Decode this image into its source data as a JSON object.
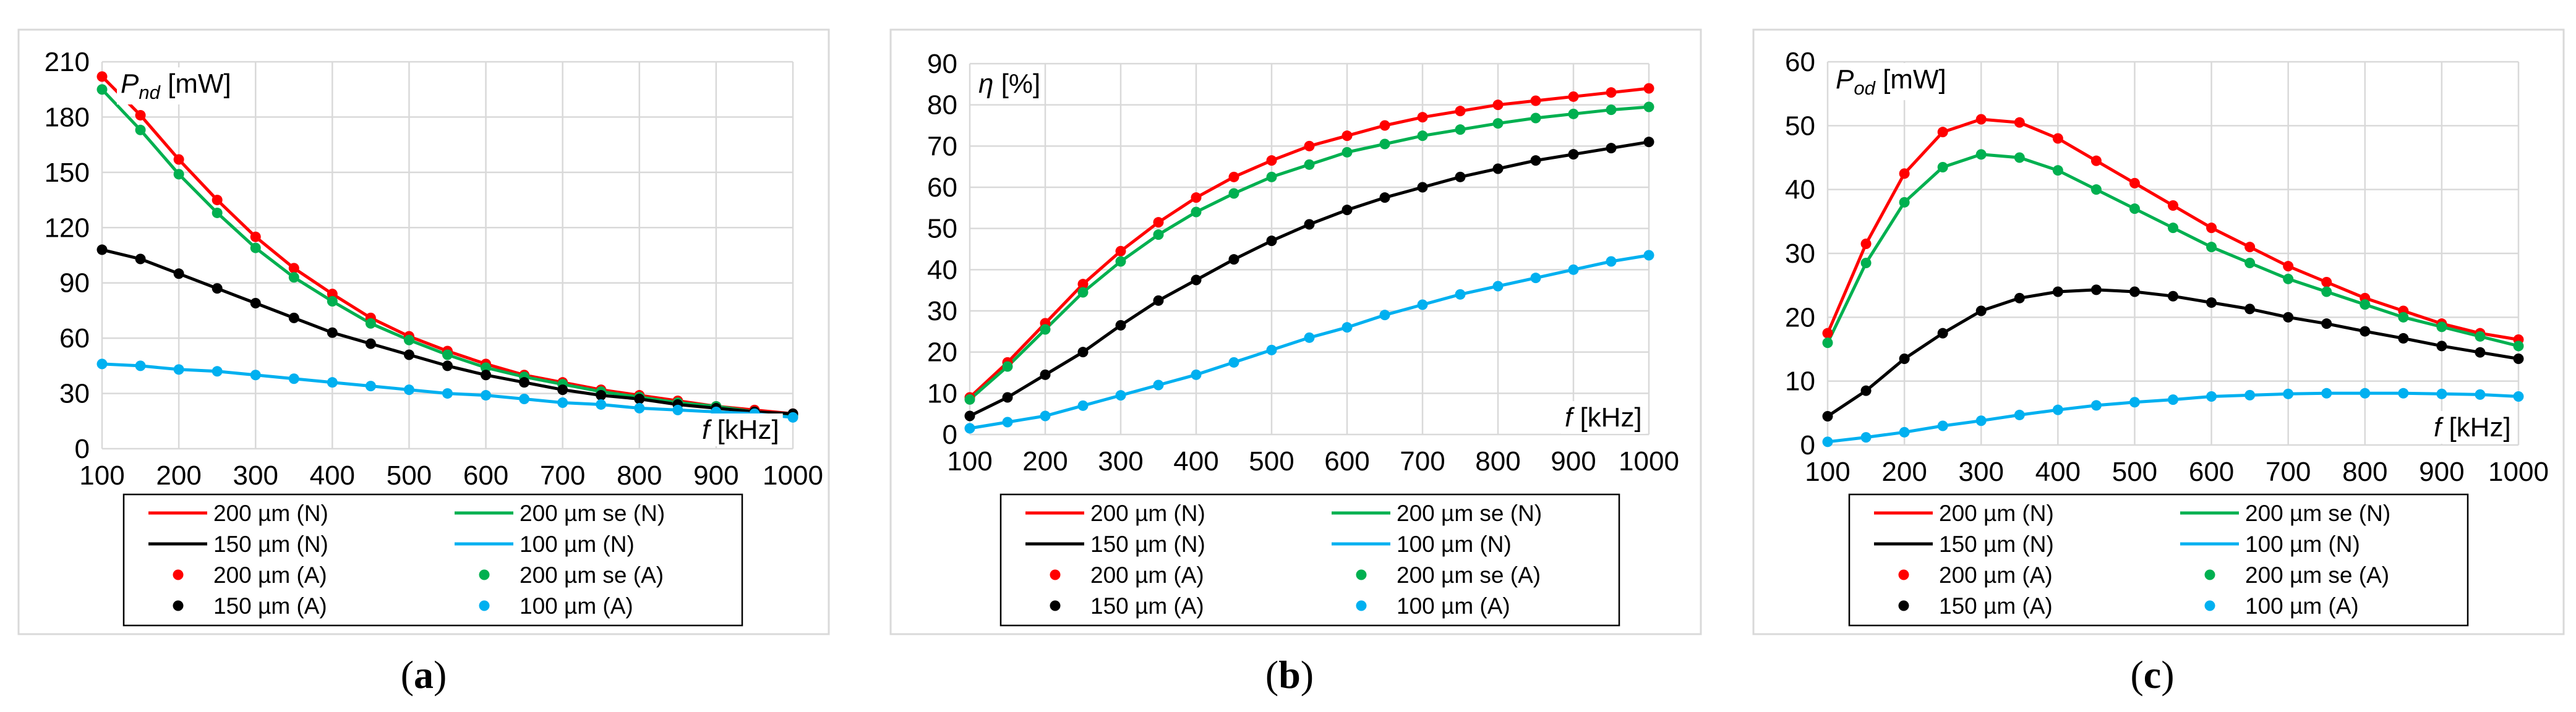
{
  "chart_data": [
    {
      "type": "line",
      "panel": "(a)",
      "caption_label": "a",
      "ylabel_symbol": "P",
      "ylabel_sub": "nd",
      "ylabel_unit": " [mW]",
      "xlabel_symbol": "f",
      "xlabel_unit": " [kHz]",
      "xlim": [
        100,
        1000
      ],
      "ylim": [
        0,
        210
      ],
      "xticks": [
        100,
        200,
        300,
        400,
        500,
        600,
        700,
        800,
        900,
        1000
      ],
      "yticks": [
        0,
        30,
        60,
        90,
        120,
        150,
        180,
        210
      ],
      "x": [
        100,
        150,
        200,
        250,
        300,
        350,
        400,
        450,
        500,
        550,
        600,
        650,
        700,
        750,
        800,
        850,
        900,
        950,
        1000
      ],
      "series": [
        {
          "name": "200 µm",
          "color": "#ff0000",
          "values": [
            202,
            181,
            157,
            135,
            115,
            98,
            84,
            71,
            61,
            53,
            46,
            40,
            36,
            32,
            29,
            26,
            23,
            21,
            19
          ]
        },
        {
          "name": "200 µm se",
          "color": "#00b050",
          "values": [
            195,
            173,
            149,
            128,
            109,
            93,
            80,
            68,
            59,
            51,
            44,
            39,
            35,
            31,
            28,
            25,
            23,
            20,
            18
          ]
        },
        {
          "name": "150 µm",
          "color": "#000000",
          "values": [
            108,
            103,
            95,
            87,
            79,
            71,
            63,
            57,
            51,
            45,
            40,
            36,
            32,
            29,
            27,
            24,
            22,
            20,
            19
          ]
        },
        {
          "name": "100 µm",
          "color": "#00b0f0",
          "values": [
            46,
            45,
            43,
            42,
            40,
            38,
            36,
            34,
            32,
            30,
            29,
            27,
            25,
            24,
            22,
            21,
            20,
            19,
            17
          ]
        }
      ],
      "legend": [
        "200 µm (N)",
        "200 µm se (N)",
        "150 µm (N)",
        "100 µm (N)",
        "200 µm (A)",
        "200 µm se (A)",
        "150 µm (A)",
        "100 µm (A)"
      ]
    },
    {
      "type": "line",
      "panel": "(b)",
      "caption_label": "b",
      "ylabel_symbol": "η",
      "ylabel_sub": "",
      "ylabel_unit": " [%]",
      "xlabel_symbol": "f",
      "xlabel_unit": " [kHz]",
      "xlim": [
        100,
        1000
      ],
      "ylim": [
        0,
        90
      ],
      "xticks": [
        100,
        200,
        300,
        400,
        500,
        600,
        700,
        800,
        900,
        1000
      ],
      "yticks": [
        0,
        10,
        20,
        30,
        40,
        50,
        60,
        70,
        80,
        90
      ],
      "x": [
        100,
        150,
        200,
        250,
        300,
        350,
        400,
        450,
        500,
        550,
        600,
        650,
        700,
        750,
        800,
        850,
        900,
        950,
        1000
      ],
      "series": [
        {
          "name": "200 µm",
          "color": "#ff0000",
          "values": [
            9,
            17.5,
            27,
            36.5,
            44.5,
            51.5,
            57.5,
            62.5,
            66.5,
            70,
            72.5,
            75,
            77,
            78.5,
            80,
            81,
            82,
            83,
            84
          ]
        },
        {
          "name": "200 µm se",
          "color": "#00b050",
          "values": [
            8.5,
            16.5,
            25.5,
            34.5,
            42,
            48.5,
            54,
            58.5,
            62.5,
            65.5,
            68.5,
            70.5,
            72.5,
            74,
            75.5,
            76.8,
            77.8,
            78.8,
            79.5
          ]
        },
        {
          "name": "150 µm",
          "color": "#000000",
          "values": [
            4.5,
            9,
            14.5,
            20,
            26.5,
            32.5,
            37.5,
            42.5,
            47,
            51,
            54.5,
            57.5,
            60,
            62.5,
            64.5,
            66.5,
            68,
            69.5,
            71
          ]
        },
        {
          "name": "100 µm",
          "color": "#00b0f0",
          "values": [
            1.5,
            3,
            4.5,
            7,
            9.5,
            12,
            14.5,
            17.5,
            20.5,
            23.5,
            26,
            29,
            31.5,
            34,
            36,
            38,
            40,
            42,
            43.5
          ]
        }
      ],
      "legend": [
        "200 µm (N)",
        "200 µm se (N)",
        "150 µm (N)",
        "100 µm (N)",
        "200 µm (A)",
        "200 µm se (A)",
        "150 µm (A)",
        "100 µm (A)"
      ]
    },
    {
      "type": "line",
      "panel": "(c)",
      "caption_label": "c",
      "ylabel_symbol": "P",
      "ylabel_sub": "od",
      "ylabel_unit": " [mW]",
      "xlabel_symbol": "f",
      "xlabel_unit": " [kHz]",
      "xlim": [
        100,
        1000
      ],
      "ylim": [
        0,
        60
      ],
      "xticks": [
        100,
        200,
        300,
        400,
        500,
        600,
        700,
        800,
        900,
        1000
      ],
      "yticks": [
        0,
        10,
        20,
        30,
        40,
        50,
        60
      ],
      "x": [
        100,
        150,
        200,
        250,
        300,
        350,
        400,
        450,
        500,
        550,
        600,
        650,
        700,
        750,
        800,
        850,
        900,
        950,
        1000
      ],
      "series": [
        {
          "name": "200 µm",
          "color": "#ff0000",
          "values": [
            17.5,
            31.5,
            42.5,
            49,
            51,
            50.5,
            48,
            44.5,
            41,
            37.5,
            34,
            31,
            28,
            25.5,
            23,
            21,
            19,
            17.5,
            16.5
          ]
        },
        {
          "name": "200 µm se",
          "color": "#00b050",
          "values": [
            16,
            28.5,
            38,
            43.5,
            45.5,
            45,
            43,
            40,
            37,
            34,
            31,
            28.5,
            26,
            24,
            22,
            20,
            18.5,
            17,
            15.5
          ]
        },
        {
          "name": "150 µm",
          "color": "#000000",
          "values": [
            4.5,
            8.5,
            13.5,
            17.5,
            21,
            23,
            24,
            24.3,
            24,
            23.3,
            22.3,
            21.3,
            20,
            19,
            17.8,
            16.7,
            15.5,
            14.5,
            13.5
          ]
        },
        {
          "name": "100 µm",
          "color": "#00b0f0",
          "values": [
            0.5,
            1.2,
            2,
            3,
            3.8,
            4.7,
            5.5,
            6.2,
            6.7,
            7.1,
            7.6,
            7.8,
            8,
            8.1,
            8.1,
            8.1,
            8,
            7.9,
            7.6
          ]
        }
      ],
      "legend": [
        "200 µm (N)",
        "200 µm se (N)",
        "150 µm (N)",
        "100 µm (N)",
        "200 µm (A)",
        "200 µm se (A)",
        "150 µm (A)",
        "100 µm (A)"
      ]
    }
  ]
}
